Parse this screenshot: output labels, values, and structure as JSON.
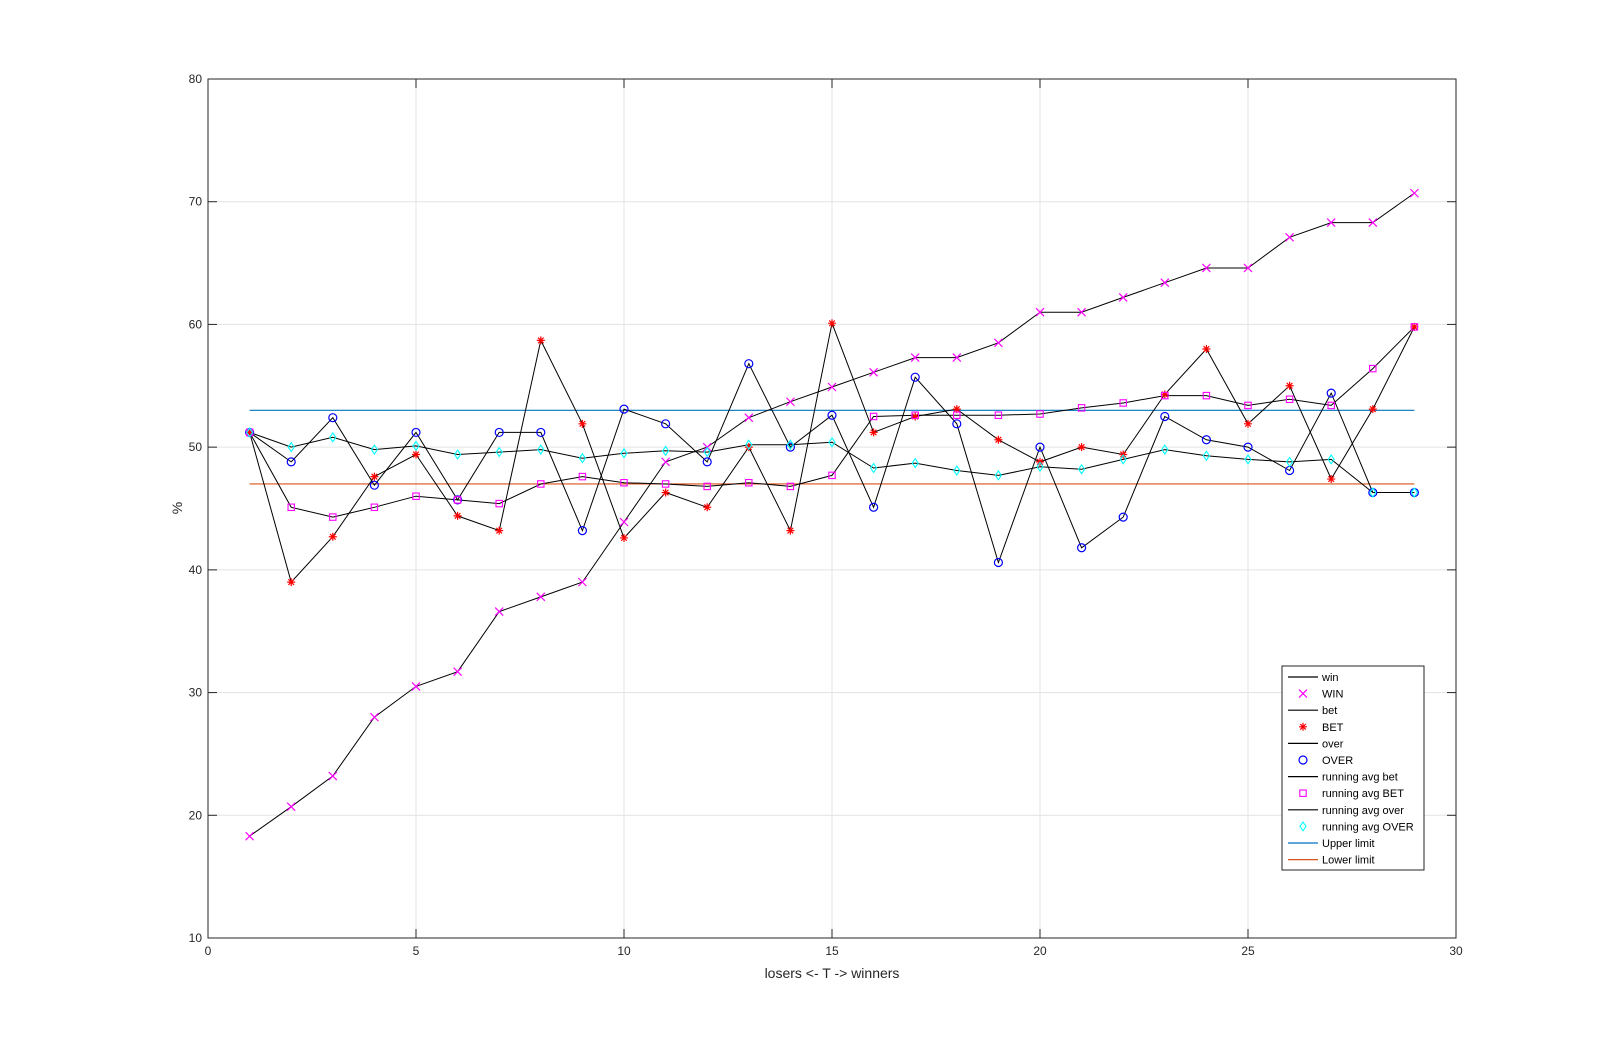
{
  "chart_data": {
    "type": "line",
    "title": "",
    "xlabel": "losers <- T -> winners",
    "ylabel": "%",
    "xlim": [
      0,
      30
    ],
    "ylim": [
      10,
      80
    ],
    "xticks": [
      0,
      5,
      10,
      15,
      20,
      25,
      30
    ],
    "yticks": [
      10,
      20,
      30,
      40,
      50,
      60,
      70,
      80
    ],
    "grid": true,
    "legend_position": "bottom-right",
    "x": [
      1,
      2,
      3,
      4,
      5,
      6,
      7,
      8,
      9,
      10,
      11,
      12,
      13,
      14,
      15,
      16,
      17,
      18,
      19,
      20,
      21,
      22,
      23,
      24,
      25,
      26,
      27,
      28,
      29
    ],
    "series": [
      {
        "name": "win",
        "marker_name": "WIN",
        "marker": "x",
        "line_color": "#000000",
        "marker_color": "#ff00ff",
        "values": [
          18.3,
          20.7,
          23.2,
          28.0,
          30.5,
          31.7,
          36.6,
          37.8,
          39.0,
          43.9,
          48.8,
          50.0,
          52.4,
          53.7,
          54.9,
          56.1,
          57.3,
          57.3,
          58.5,
          61.0,
          61.0,
          62.2,
          63.4,
          64.6,
          64.6,
          67.1,
          68.3,
          68.3,
          70.7
        ]
      },
      {
        "name": "bet",
        "marker_name": "BET",
        "marker": "asterisk",
        "line_color": "#000000",
        "marker_color": "#ff0000",
        "values": [
          51.2,
          39.0,
          42.7,
          47.6,
          49.4,
          44.4,
          43.2,
          58.7,
          51.9,
          42.6,
          46.3,
          45.1,
          50.0,
          43.2,
          60.1,
          51.2,
          52.5,
          53.1,
          50.6,
          48.8,
          50.0,
          49.4,
          54.3,
          58.0,
          51.9,
          55.0,
          47.4,
          53.1,
          59.8
        ]
      },
      {
        "name": "over",
        "marker_name": "OVER",
        "marker": "circle",
        "line_color": "#000000",
        "marker_color": "#0000ff",
        "values": [
          51.2,
          48.8,
          52.4,
          46.9,
          51.2,
          45.7,
          51.2,
          51.2,
          43.2,
          53.1,
          51.9,
          48.8,
          56.8,
          50.0,
          52.6,
          45.1,
          55.7,
          51.9,
          40.6,
          50.0,
          41.8,
          44.3,
          52.5,
          50.6,
          50.0,
          48.1,
          54.4,
          46.3,
          46.3
        ]
      },
      {
        "name": "running avg bet",
        "marker_name": "running avg BET",
        "marker": "square",
        "line_color": "#000000",
        "marker_color": "#ff00ff",
        "values": [
          51.2,
          45.1,
          44.3,
          45.1,
          46.0,
          45.7,
          45.4,
          47.0,
          47.6,
          47.1,
          47.0,
          46.8,
          47.1,
          46.8,
          47.7,
          52.5,
          52.6,
          52.6,
          52.6,
          52.7,
          53.2,
          53.6,
          54.2,
          54.2,
          53.4,
          53.9,
          53.4,
          56.4,
          59.8
        ]
      },
      {
        "name": "running avg over",
        "marker_name": "running avg OVER",
        "marker": "diamond",
        "line_color": "#000000",
        "marker_color": "#00ffff",
        "values": [
          51.2,
          50.0,
          50.8,
          49.8,
          50.1,
          49.4,
          49.6,
          49.8,
          49.1,
          49.5,
          49.7,
          49.6,
          50.2,
          50.2,
          50.4,
          48.3,
          48.7,
          48.1,
          47.7,
          48.4,
          48.2,
          49.0,
          49.8,
          49.3,
          49.0,
          48.8,
          49.0,
          46.3,
          46.3
        ]
      }
    ],
    "limits": [
      {
        "name": "Upper limit",
        "value": 53.0,
        "color": "#0072bd",
        "x_range": [
          1,
          29
        ]
      },
      {
        "name": "Lower limit",
        "value": 47.0,
        "color": "#d95319",
        "x_range": [
          1,
          29
        ]
      }
    ],
    "legend": [
      {
        "label": "win",
        "kind": "line",
        "color": "#000000"
      },
      {
        "label": "WIN",
        "kind": "marker",
        "marker": "x",
        "color": "#ff00ff"
      },
      {
        "label": "bet",
        "kind": "line",
        "color": "#000000"
      },
      {
        "label": "BET",
        "kind": "marker",
        "marker": "asterisk",
        "color": "#ff0000"
      },
      {
        "label": "over",
        "kind": "line",
        "color": "#000000"
      },
      {
        "label": "OVER",
        "kind": "marker",
        "marker": "circle",
        "color": "#0000ff"
      },
      {
        "label": "running avg bet",
        "kind": "line",
        "color": "#000000"
      },
      {
        "label": "running avg BET",
        "kind": "marker",
        "marker": "square",
        "color": "#ff00ff"
      },
      {
        "label": "running avg over",
        "kind": "line",
        "color": "#000000"
      },
      {
        "label": "running avg OVER",
        "kind": "marker",
        "marker": "diamond",
        "color": "#00ffff"
      },
      {
        "label": "Upper limit",
        "kind": "line",
        "color": "#0072bd"
      },
      {
        "label": "Lower limit",
        "kind": "line",
        "color": "#d95319"
      }
    ]
  }
}
